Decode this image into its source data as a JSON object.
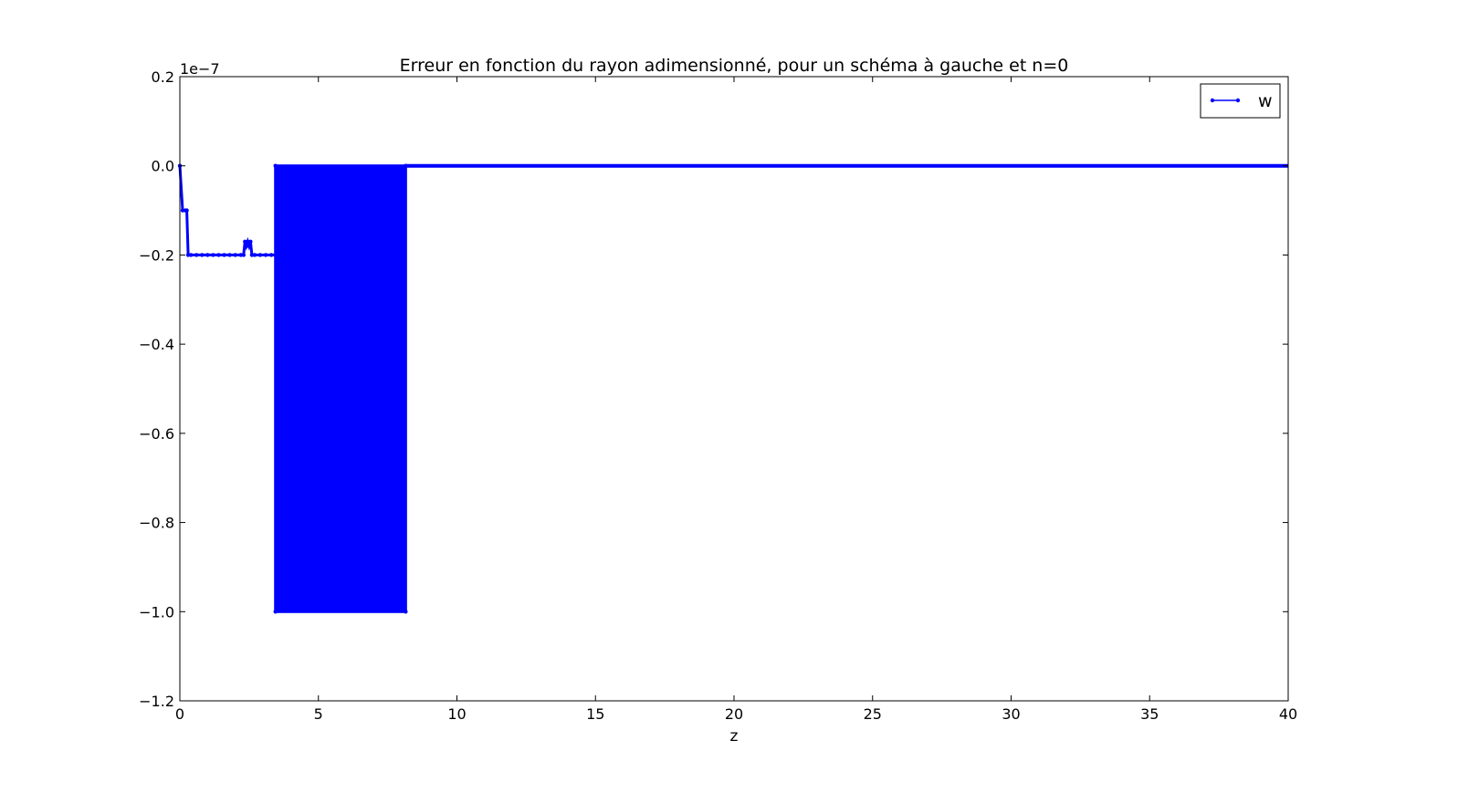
{
  "chart_data": {
    "type": "line",
    "title": "Erreur en fonction du rayon adimensionné, pour un schéma à gauche et n=0",
    "xlabel": "z",
    "ylabel": "",
    "y_scale_label": "1e−7",
    "xlim": [
      0,
      40
    ],
    "ylim": [
      -1.2,
      0.2
    ],
    "x_ticks": [
      0,
      5,
      10,
      15,
      20,
      25,
      30,
      35,
      40
    ],
    "y_ticks": [
      0.2,
      0.0,
      -0.2,
      -0.4,
      -0.6,
      -0.8,
      -1.0,
      -1.2
    ],
    "x_tick_labels": [
      "0",
      "5",
      "10",
      "15",
      "20",
      "25",
      "30",
      "35",
      "40"
    ],
    "y_tick_labels": [
      "0.2",
      "0.0",
      "−0.2",
      "−0.4",
      "−0.6",
      "−0.8",
      "−1.0",
      "−1.2"
    ],
    "grid": false,
    "legend_position": "top-right",
    "series": [
      {
        "name": "w",
        "color": "#0000ff",
        "marker": "point",
        "segments": [
          {
            "x": [
              0.0,
              0.1,
              0.2,
              0.25,
              0.3,
              0.4,
              0.6,
              0.8,
              1.0,
              1.2,
              1.4,
              1.6,
              1.8,
              2.0,
              2.2,
              2.3,
              2.35,
              2.4,
              2.45,
              2.5,
              2.55,
              2.6,
              2.7,
              2.9,
              3.1,
              3.3,
              3.45
            ],
            "y": [
              0.0,
              -0.1,
              -0.1,
              -0.1,
              -0.2,
              -0.2,
              -0.2,
              -0.2,
              -0.2,
              -0.2,
              -0.2,
              -0.2,
              -0.2,
              -0.2,
              -0.2,
              -0.2,
              -0.17,
              -0.18,
              -0.17,
              -0.18,
              -0.17,
              -0.2,
              -0.2,
              -0.2,
              -0.2,
              -0.2,
              -0.2
            ]
          }
        ],
        "oscillation_band": {
          "x_start": 3.45,
          "x_end": 8.15,
          "y_high": 0.0,
          "y_low": -1.0
        },
        "tail": {
          "x_start": 8.15,
          "x_end": 40.0,
          "y": 0.0
        }
      }
    ]
  }
}
